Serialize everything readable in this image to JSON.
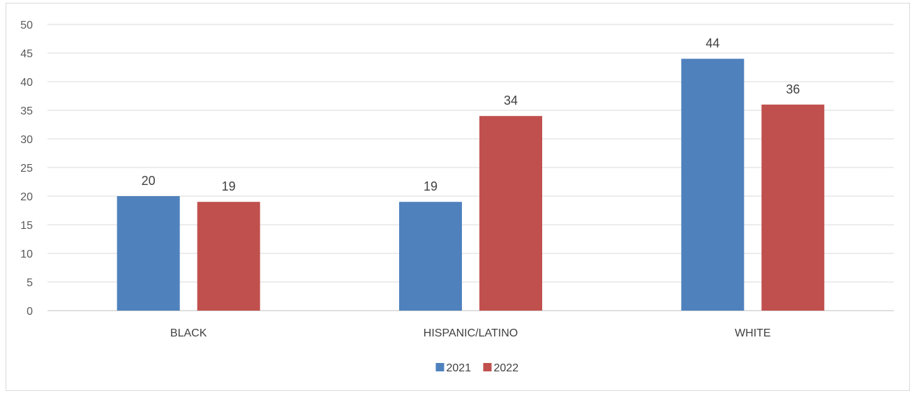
{
  "chart_data": {
    "type": "bar",
    "categories": [
      "BLACK",
      "HISPANIC/LATINO",
      "WHITE"
    ],
    "series": [
      {
        "name": "2021",
        "values": [
          20,
          19,
          44
        ],
        "color": "#4f81bd"
      },
      {
        "name": "2022",
        "values": [
          19,
          34,
          36
        ],
        "color": "#c0504d"
      }
    ],
    "ylim": [
      0,
      50
    ],
    "yticks": [
      0,
      5,
      10,
      15,
      20,
      25,
      30,
      35,
      40,
      45,
      50
    ],
    "grid": true,
    "legend_position": "bottom",
    "data_labels": true
  }
}
